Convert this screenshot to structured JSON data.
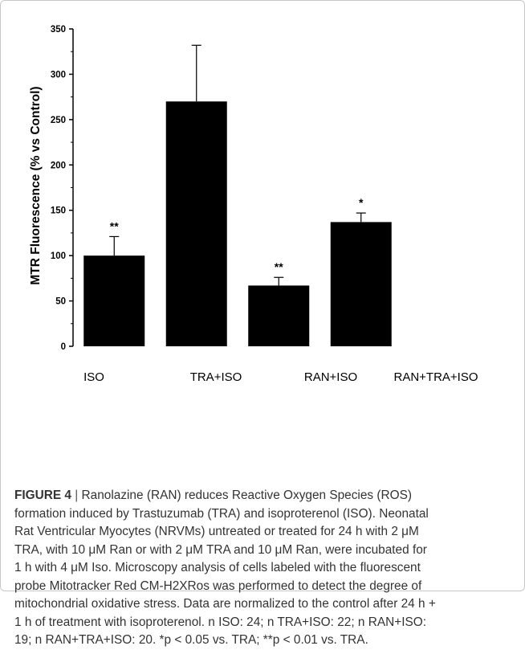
{
  "chart_data": {
    "type": "bar",
    "title": "",
    "xlabel": "",
    "ylabel": "MTR Fluorescence (% vs Control)",
    "categories": [
      "ISO",
      "TRA+ISO",
      "RAN+ISO",
      "RAN+TRA+ISO"
    ],
    "values": [
      100,
      270,
      67,
      137
    ],
    "error_upper": [
      21,
      62,
      9,
      10
    ],
    "significance": [
      "**",
      "",
      "**",
      "*"
    ],
    "ylim": [
      0,
      350
    ],
    "yticks": [
      "0",
      "50",
      "100",
      "150",
      "200",
      "250",
      "300",
      "350"
    ],
    "grid": false,
    "bar_color": "#000000"
  },
  "caption": {
    "label": "FIGURE 4",
    "separator": " | ",
    "lines": [
      "Ranolazine (RAN) reduces Reactive Oxygen Species (ROS)",
      "formation induced by Trastuzumab (TRA) and isoproterenol (ISO). Neonatal",
      "Rat Ventricular Myocytes (NRVMs) untreated or treated for 24 h with 2 μM",
      "TRA, with 10 μM Ran or with 2 μM TRA and 10 μM Ran, were incubated for",
      "1 h with 4 μM Iso. Microscopy analysis of cells labeled with the fluorescent",
      "probe Mitotracker Red CM-H2XRos was performed to detect the degree of",
      "mitochondrial oxidative stress. Data are normalized to the control after 24 h +",
      "1 h of treatment with isoproterenol. n ISO: 24; n TRA+ISO: 22; n RAN+ISO:",
      "19; n RAN+TRA+ISO: 20. *p < 0.05 vs. TRA; **p < 0.01 vs. TRA."
    ]
  }
}
